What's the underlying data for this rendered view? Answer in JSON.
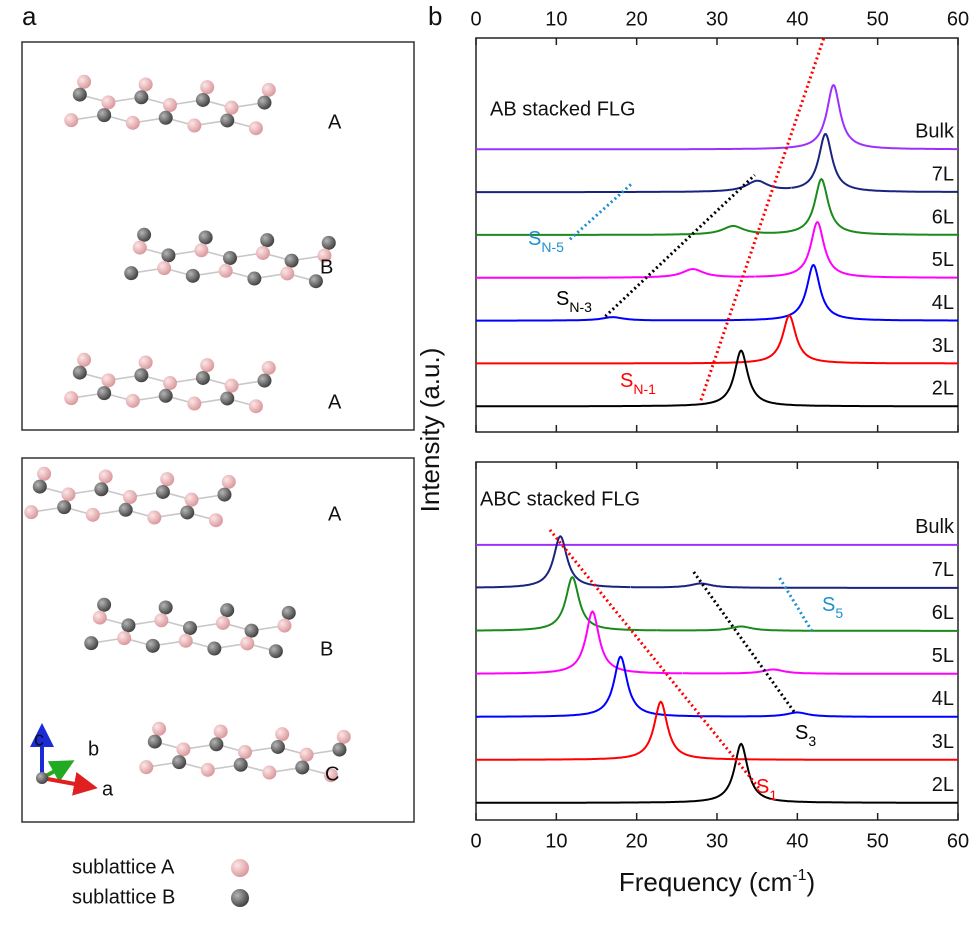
{
  "panel_labels": [
    "a",
    "b"
  ],
  "structures": [
    {
      "layers": [
        "A",
        "B",
        "A"
      ]
    },
    {
      "layers": [
        "A",
        "B",
        "C"
      ]
    }
  ],
  "axis_labels": [
    "c",
    "b",
    "a"
  ],
  "legend": [
    "sublattice A",
    "sublattice B"
  ],
  "chart_data": [
    {
      "type": "line",
      "title": "AB stacked FLG",
      "ylabel": "Intensity (a.u.)",
      "xlim": [
        0,
        60
      ],
      "xticks": [
        0,
        10,
        20,
        30,
        40,
        50,
        60
      ],
      "ylim": [
        -0.6,
        8.6
      ],
      "series": [
        {
          "name": "Bulk",
          "color": "#9b30ff",
          "peaks": [
            44.5
          ],
          "heights": [
            1.5
          ]
        },
        {
          "name": "7L",
          "color": "#1a237e",
          "peaks": [
            35,
            43.5
          ],
          "heights": [
            0.25,
            1.35
          ]
        },
        {
          "name": "6L",
          "color": "#1a8a1a",
          "peaks": [
            32,
            43
          ],
          "heights": [
            0.2,
            1.3
          ]
        },
        {
          "name": "5L",
          "color": "#ff00ff",
          "peaks": [
            27,
            42.5
          ],
          "heights": [
            0.2,
            1.3
          ]
        },
        {
          "name": "4L",
          "color": "#0000ff",
          "peaks": [
            17,
            42
          ],
          "heights": [
            0.08,
            1.3
          ]
        },
        {
          "name": "3L",
          "color": "#ff0000",
          "peaks": [
            39
          ],
          "heights": [
            1.12
          ]
        },
        {
          "name": "2L",
          "color": "#000000",
          "peaks": [
            33
          ],
          "heights": [
            1.3
          ]
        }
      ],
      "guides": [
        {
          "label": "S",
          "subscript": "N-5",
          "color": "#1e8fd0",
          "x": [
            11.7,
            19.4
          ],
          "y": [
            3.9,
            5.2
          ]
        },
        {
          "label": "S",
          "subscript": "N-3",
          "color": "#000000",
          "x": [
            16.1,
            34.7
          ],
          "y": [
            2.1,
            5.4
          ]
        },
        {
          "label": "S",
          "subscript": "N-1",
          "color": "#ff0000",
          "x": [
            28,
            43.3
          ],
          "y": [
            0.14,
            8.6
          ]
        }
      ]
    },
    {
      "type": "line",
      "title": "ABC stacked FLG",
      "xlabel": {
        "text": "Frequency (cm",
        "superscript": "-1",
        "end": ")"
      },
      "xlim": [
        0,
        60
      ],
      "xticks": [
        0,
        10,
        20,
        30,
        40,
        50,
        60
      ],
      "ylim": [
        -0.4,
        7.93
      ],
      "series": [
        {
          "name": "Bulk",
          "color": "#9b30ff",
          "peaks": [],
          "heights": []
        },
        {
          "name": "7L",
          "color": "#1a237e",
          "peaks": [
            10.5,
            28
          ],
          "heights": [
            1.2,
            0.1
          ]
        },
        {
          "name": "6L",
          "color": "#1a8a1a",
          "peaks": [
            12,
            33
          ],
          "heights": [
            1.25,
            0.1
          ]
        },
        {
          "name": "5L",
          "color": "#ff00ff",
          "peaks": [
            14.5,
            37
          ],
          "heights": [
            1.45,
            0.1
          ]
        },
        {
          "name": "4L",
          "color": "#0000ff",
          "peaks": [
            18,
            40
          ],
          "heights": [
            1.4,
            0.1
          ]
        },
        {
          "name": "3L",
          "color": "#ff0000",
          "peaks": [
            23
          ],
          "heights": [
            1.35
          ]
        },
        {
          "name": "2L",
          "color": "#000000",
          "peaks": [
            33
          ],
          "heights": [
            1.37
          ]
        }
      ],
      "guides": [
        {
          "label": "S",
          "subscript": "5",
          "color": "#1e8fd0",
          "x": [
            37.8,
            41.8
          ],
          "y": [
            5.23,
            4.0
          ]
        },
        {
          "label": "S",
          "subscript": "3",
          "color": "#000000",
          "x": [
            27.1,
            39.7
          ],
          "y": [
            5.37,
            2.09
          ]
        },
        {
          "label": "S",
          "subscript": "1",
          "color": "#ff0000",
          "x": [
            9.2,
            35.4
          ],
          "y": [
            6.35,
            0.3
          ]
        }
      ]
    }
  ]
}
